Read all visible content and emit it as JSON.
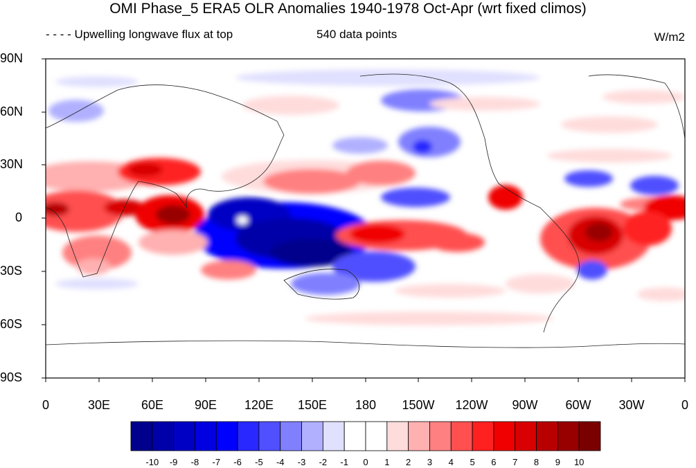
{
  "title": "OMI Phase_5 ERA5 OLR Anomalies 1940-1978 Oct-Apr (wrt fixed climos)",
  "subtitle_left": "- - - - Upwelling longwave flux at top",
  "subtitle_mid": "540 data points",
  "units": "W/m2",
  "lat_labels": [
    "90N",
    "60N",
    "30N",
    "0",
    "30S",
    "60S",
    "90S"
  ],
  "lon_labels": [
    "0",
    "30E",
    "60E",
    "90E",
    "120E",
    "150E",
    "180",
    "150W",
    "120W",
    "90W",
    "60W",
    "30W",
    "0"
  ],
  "colorbar": {
    "labels": [
      "-10",
      "-9",
      "-8",
      "-7",
      "-6",
      "-5",
      "-4",
      "-3",
      "-2",
      "-1",
      "0",
      "1",
      "2",
      "3",
      "4",
      "5",
      "6",
      "7",
      "8",
      "9",
      "10"
    ],
    "colors": [
      "#00008c",
      "#0000a8",
      "#0000c4",
      "#0000e0",
      "#0000ff",
      "#2828ff",
      "#5050ff",
      "#8080ff",
      "#b0b0ff",
      "#e0e0ff",
      "#ffffff",
      "#ffffff",
      "#ffdcdc",
      "#ffb0b0",
      "#ff8080",
      "#ff5050",
      "#ff2020",
      "#f00000",
      "#d80000",
      "#b80000",
      "#980000",
      "#7a0000"
    ]
  }
}
